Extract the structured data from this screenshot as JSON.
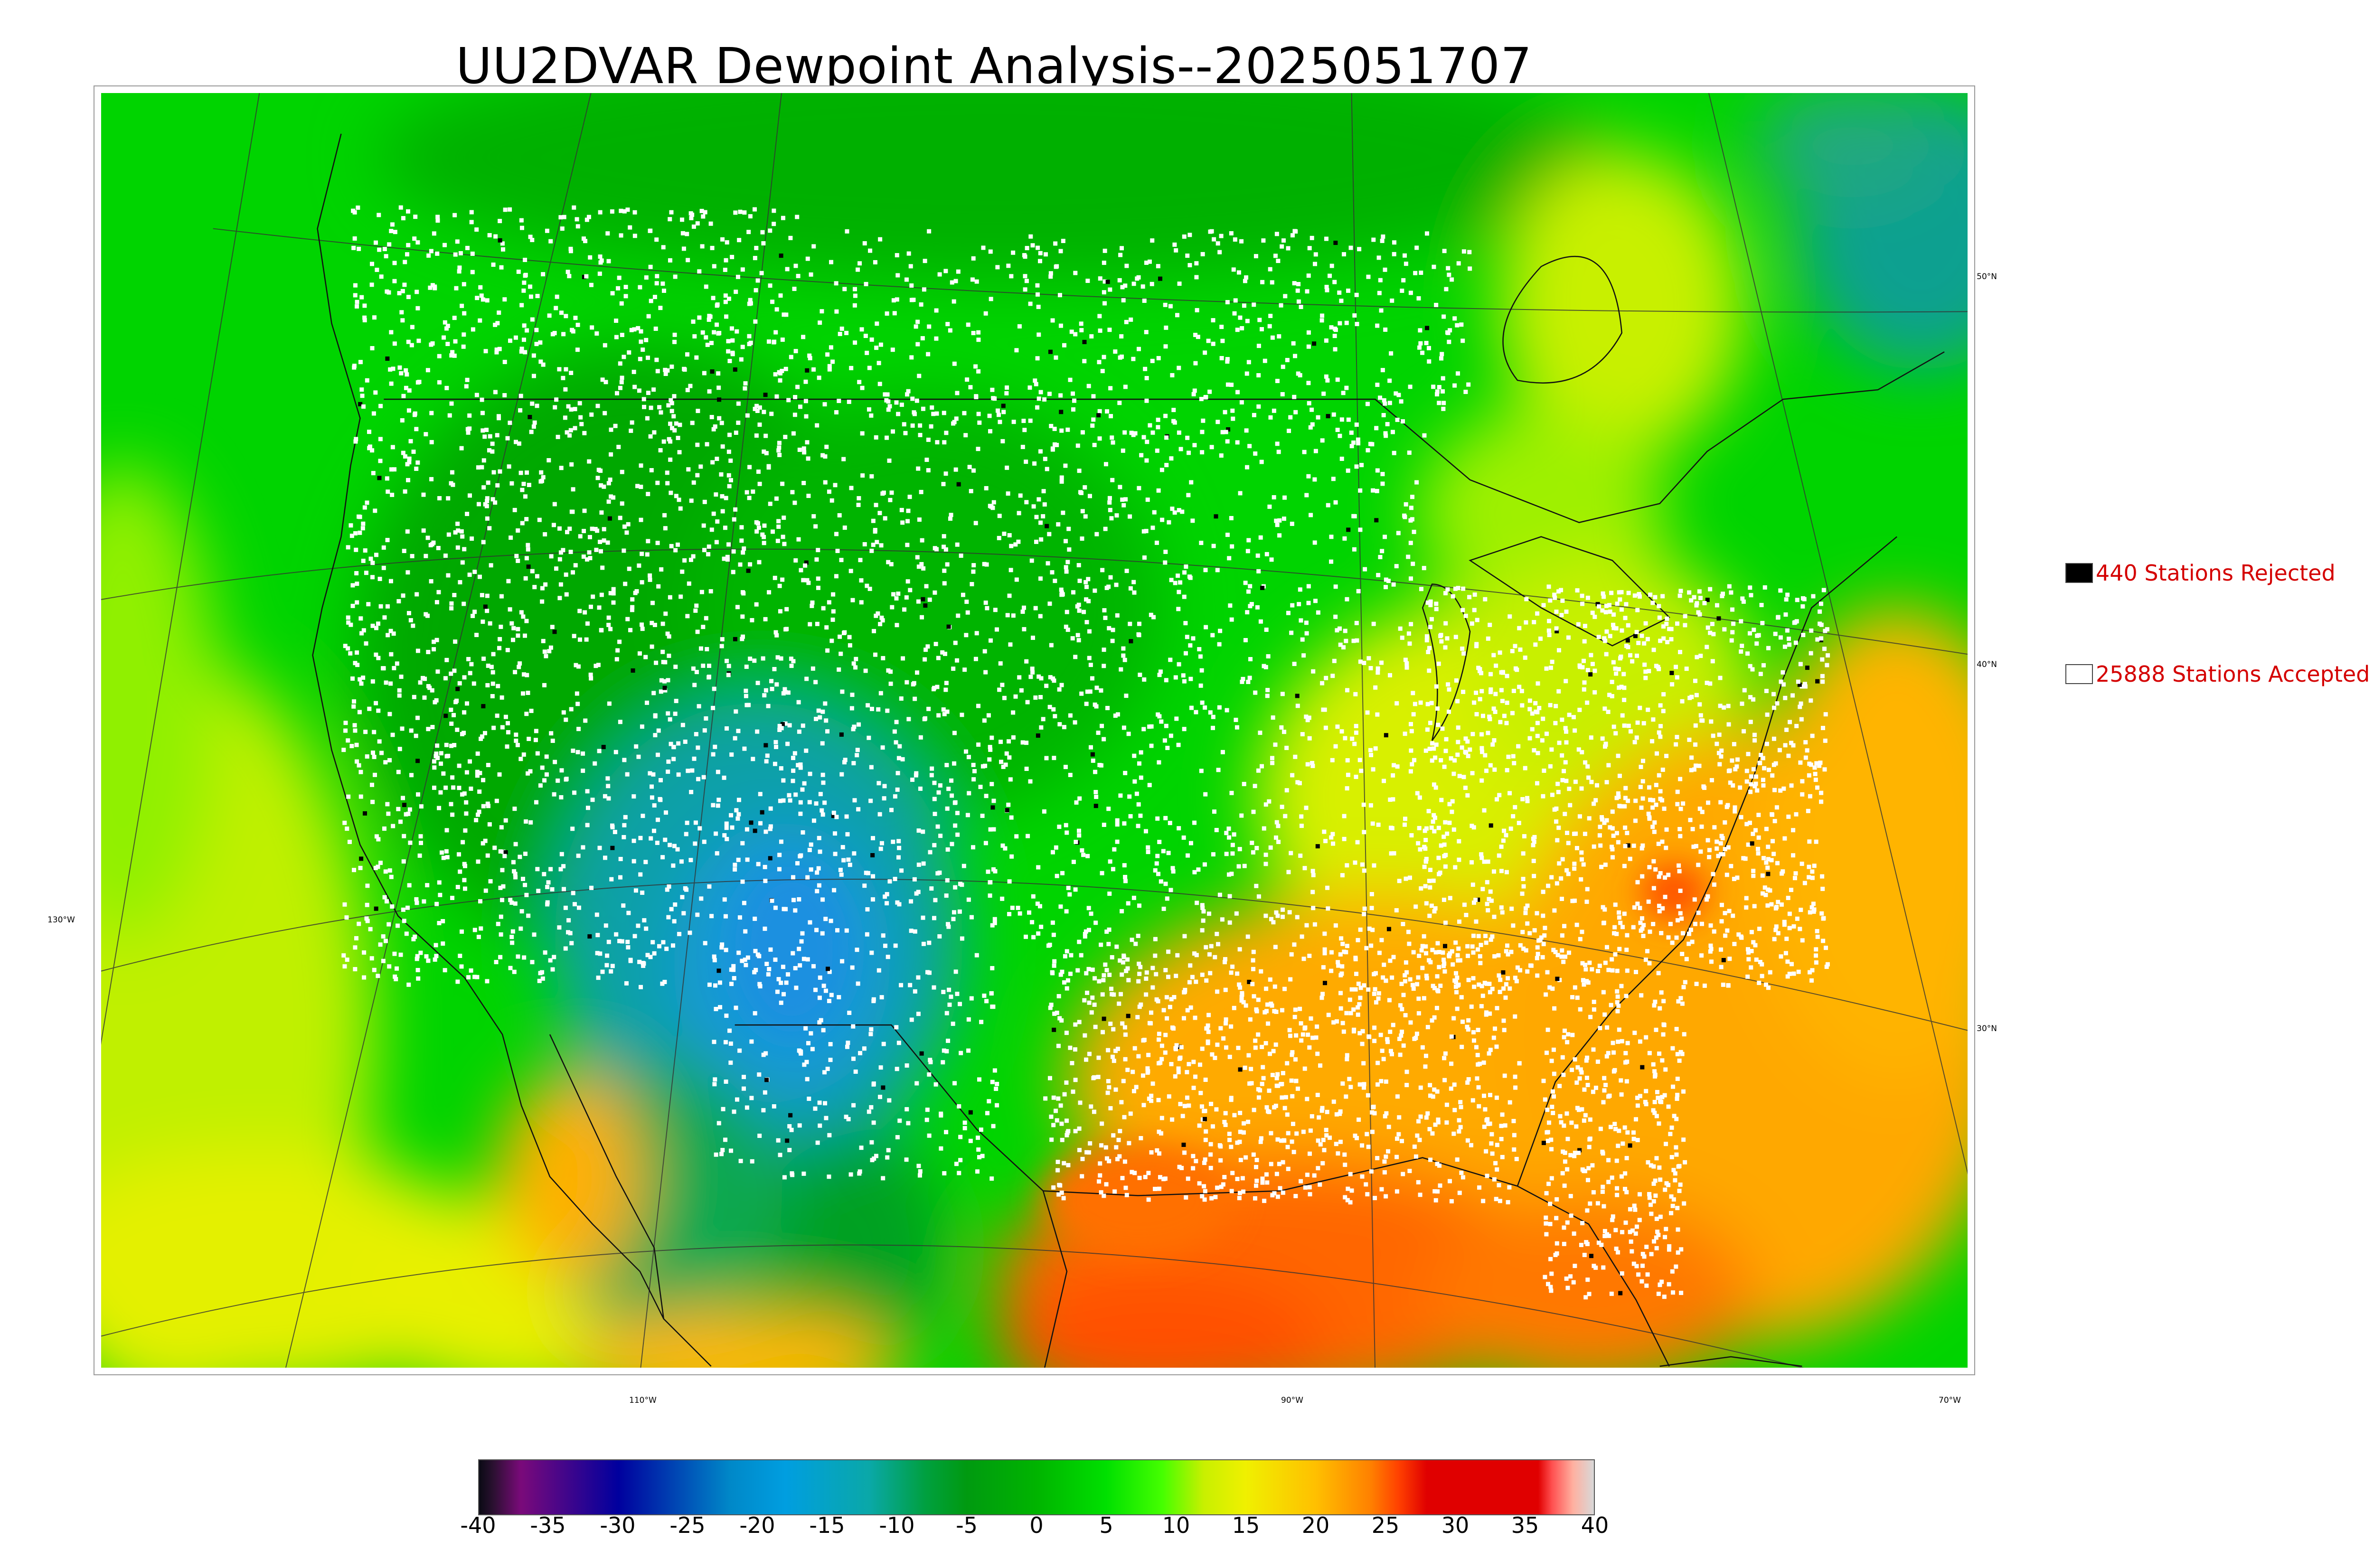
{
  "title": "UU2DVAR Dewpoint Analysis--2025051707",
  "legend": {
    "rejected": {
      "label": "440 Stations Rejected",
      "swatch_color": "#000000"
    },
    "accepted": {
      "label": "25888 Stations Accepted",
      "swatch_color": "#ffffff"
    }
  },
  "graticule": {
    "lat_labels": [
      "50°N",
      "40°N",
      "30°N"
    ],
    "lon_labels": [
      "130°W",
      "110°W",
      "90°W",
      "70°W"
    ]
  },
  "colorbar": {
    "min": -40,
    "max": 40,
    "ticks": [
      "-40",
      "-35",
      "-30",
      "-25",
      "-20",
      "-15",
      "-10",
      "-5",
      "0",
      "5",
      "10",
      "15",
      "20",
      "25",
      "30",
      "35",
      "40"
    ],
    "stops": [
      {
        "v": -40,
        "c": "#0a0a14"
      },
      {
        "v": -39,
        "c": "#2a1030"
      },
      {
        "v": -37,
        "c": "#7a0a7a"
      },
      {
        "v": -30,
        "c": "#00009e"
      },
      {
        "v": -22,
        "c": "#0088c8"
      },
      {
        "v": -18,
        "c": "#009ee0"
      },
      {
        "v": -12,
        "c": "#0aa8a8"
      },
      {
        "v": -8,
        "c": "#00a040"
      },
      {
        "v": -5,
        "c": "#009a10"
      },
      {
        "v": 0,
        "c": "#00b400"
      },
      {
        "v": 5,
        "c": "#00e000"
      },
      {
        "v": 9,
        "c": "#44ff00"
      },
      {
        "v": 12,
        "c": "#c8f000"
      },
      {
        "v": 15,
        "c": "#f0f000"
      },
      {
        "v": 20,
        "c": "#ffc000"
      },
      {
        "v": 24,
        "c": "#ff8000"
      },
      {
        "v": 26,
        "c": "#ff4000"
      },
      {
        "v": 28,
        "c": "#e00000"
      },
      {
        "v": 36,
        "c": "#e00000"
      },
      {
        "v": 37,
        "c": "#ff5050"
      },
      {
        "v": 38.5,
        "c": "#ffb0a0"
      },
      {
        "v": 40,
        "c": "#d8d8d8"
      }
    ]
  }
}
